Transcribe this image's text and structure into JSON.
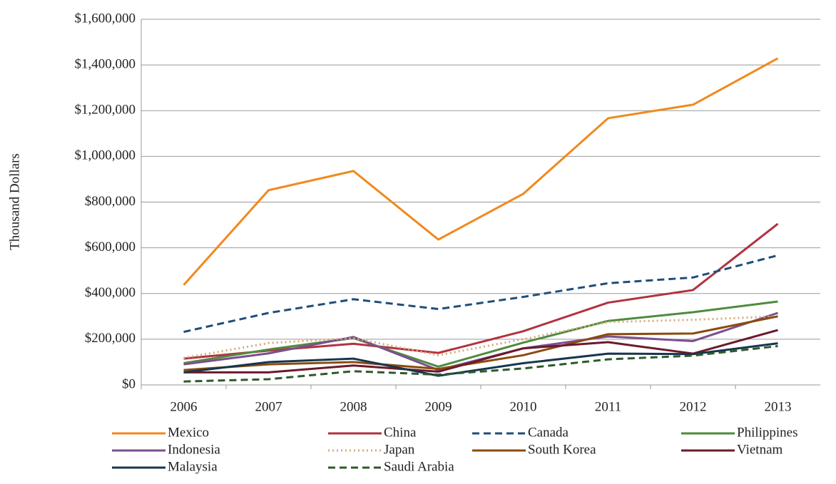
{
  "chart_data": {
    "type": "line",
    "y_label": "Thousand Dollars",
    "categories": [
      "2006",
      "2007",
      "2008",
      "2009",
      "2010",
      "2011",
      "2012",
      "2013"
    ],
    "ylim": [
      0,
      1600000
    ],
    "yticks": [
      {
        "value": 0,
        "label": "$0"
      },
      {
        "value": 200000,
        "label": "$200,000"
      },
      {
        "value": 400000,
        "label": "$400,000"
      },
      {
        "value": 600000,
        "label": "$600,000"
      },
      {
        "value": 800000,
        "label": "$800,000"
      },
      {
        "value": 1000000,
        "label": "$1,000,000"
      },
      {
        "value": 1200000,
        "label": "$1,200,000"
      },
      {
        "value": 1400000,
        "label": "$1,400,000"
      },
      {
        "value": 1600000,
        "label": "$1,600,000"
      }
    ],
    "grid": true,
    "legend": "bottom",
    "series": [
      {
        "name": "Mexico",
        "color": "#f0891e",
        "linestyle": "solid",
        "values": [
          437000,
          852000,
          936000,
          636000,
          836000,
          1167000,
          1226000,
          1429000
        ]
      },
      {
        "name": "China",
        "color": "#b1323f",
        "linestyle": "solid",
        "values": [
          115000,
          150000,
          180000,
          140000,
          235000,
          360000,
          415000,
          705000
        ]
      },
      {
        "name": "Canada",
        "color": "#1f4e79",
        "linestyle": "dashed",
        "values": [
          232000,
          315000,
          375000,
          332000,
          385000,
          445000,
          470000,
          567000
        ]
      },
      {
        "name": "Philippines",
        "color": "#4e8b3e",
        "linestyle": "solid",
        "values": [
          95000,
          155000,
          205000,
          80000,
          185000,
          280000,
          318000,
          365000
        ]
      },
      {
        "name": "Indonesia",
        "color": "#7b4f8e",
        "linestyle": "solid",
        "values": [
          90000,
          138000,
          210000,
          65000,
          160000,
          212000,
          192000,
          315000
        ]
      },
      {
        "name": "Japan",
        "color": "#d8a87a",
        "linestyle": "dotted",
        "values": [
          118000,
          183000,
          205000,
          130000,
          200000,
          275000,
          285000,
          300000
        ]
      },
      {
        "name": "South Korea",
        "color": "#8b4a0e",
        "linestyle": "solid",
        "values": [
          65000,
          90000,
          100000,
          70000,
          130000,
          222000,
          225000,
          300000
        ]
      },
      {
        "name": "Vietnam",
        "color": "#6b1a2a",
        "linestyle": "solid",
        "values": [
          55000,
          55000,
          85000,
          58000,
          160000,
          187000,
          137000,
          240000
        ]
      },
      {
        "name": "Malaysia",
        "color": "#17364e",
        "linestyle": "solid",
        "values": [
          55000,
          100000,
          115000,
          40000,
          95000,
          137000,
          135000,
          182000
        ]
      },
      {
        "name": "Saudi Arabia",
        "color": "#2e5a2a",
        "linestyle": "dashed",
        "values": [
          15000,
          25000,
          60000,
          45000,
          72000,
          112000,
          128000,
          170000
        ]
      }
    ]
  }
}
